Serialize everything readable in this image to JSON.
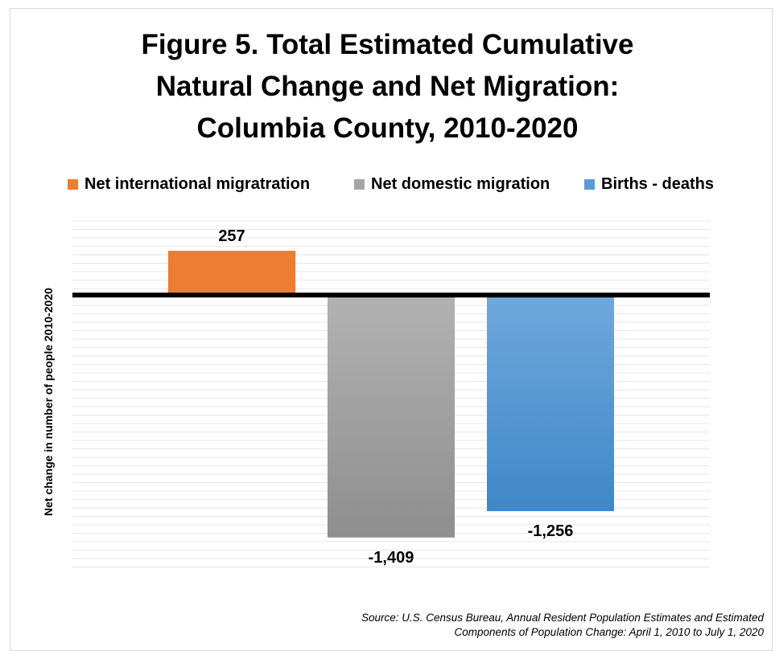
{
  "chart_data": {
    "type": "bar",
    "title_lines": [
      "Figure 5. Total Estimated Cumulative",
      "Natural Change and Net Migration:",
      "Columbia County, 2010-2020"
    ],
    "ylabel": "Net change in number of people 2010-2020",
    "legend_position": "top",
    "series": [
      {
        "name": "Net international migratration",
        "value": 257,
        "label": "257",
        "color": "#ed7d31"
      },
      {
        "name": "Net domestic migration",
        "value": -1409,
        "label": "-1,409",
        "color": "#a5a5a5"
      },
      {
        "name": "Births  - deaths",
        "value": -1256,
        "label": "-1,256",
        "color": "#5b9bd5"
      }
    ],
    "ylim": [
      -1625,
      430
    ],
    "grid": true
  },
  "source_lines": [
    "Source: U.S. Census Bureau, Annual Resident Population Estimates and Estimated",
    "Components of Population Change: April 1, 2010 to July 1, 2020"
  ]
}
